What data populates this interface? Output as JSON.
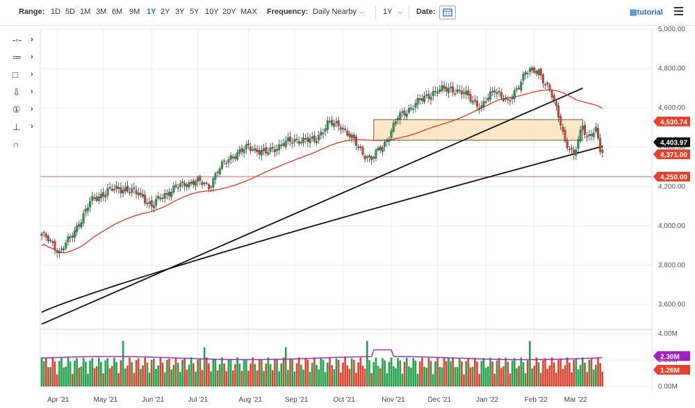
{
  "toolbar": {
    "range_label": "Range:",
    "ranges": [
      "1D",
      "5D",
      "1M",
      "3M",
      "6M",
      "9M",
      "1Y",
      "2Y",
      "3Y",
      "5Y",
      "10Y",
      "20Y",
      "MAX"
    ],
    "active_range": "1Y",
    "frequency_label": "Frequency:",
    "frequency_value": "Daily Nearby",
    "period_value": "1Y",
    "date_label": "Date:",
    "tutorial_label": "tutorial"
  },
  "tools": [
    {
      "icon": "crosshair-icon"
    },
    {
      "icon": "list-icon"
    },
    {
      "icon": "rectangle-icon"
    },
    {
      "icon": "arrow-down-icon"
    },
    {
      "icon": "number-one-icon"
    },
    {
      "icon": "indicator-icon"
    },
    {
      "icon": "magnet-icon"
    }
  ],
  "colors": {
    "up": "#22a04a",
    "down": "#e0402e",
    "ma_red": "#e8412c",
    "ma_black": "#111111",
    "box_fill": "#fbe3c0",
    "box_stroke": "#6b5a3a",
    "hline": "#e06060",
    "vol_ma": "#a020c0",
    "grid": "#ececec"
  },
  "chart_data": {
    "type": "candlestick",
    "price_axis": {
      "ticks": [
        "5,000.00",
        "4,800.00",
        "4,600.00",
        "4,400.00",
        "4,200.00",
        "4,000.00",
        "3,800.00",
        "3,600.00"
      ],
      "ylim": [
        3480,
        5000
      ]
    },
    "volume_axis": {
      "ticks": [
        "4.00M",
        "2.00M",
        "0.00M"
      ],
      "ylim": [
        0,
        4
      ]
    },
    "x_ticks": [
      "Apr '21",
      "May '21",
      "Jun '21",
      "Jul '21",
      "Aug '21",
      "Sep '21",
      "Oct '21",
      "Nov '21",
      "Dec '21",
      "Jan '22",
      "Feb '22",
      "Mar '22"
    ],
    "price_labels": [
      {
        "text": "4,530.74",
        "value": 4530.74,
        "color": "#e8412c"
      },
      {
        "text": "4,403.97",
        "value": 4403.97,
        "color": "#111111"
      },
      {
        "text": "4,371.00",
        "value": 4371.0,
        "color": "#e8412c"
      },
      {
        "text": "4,250.00",
        "value": 4250.0,
        "color": "#e8412c"
      }
    ],
    "volume_labels": [
      {
        "text": "2.30M",
        "value": 2.3,
        "color": "#a020c0"
      },
      {
        "text": "1.26M",
        "value": 1.26,
        "color": "#e8412c"
      }
    ],
    "close_path": [
      [
        0,
        3960
      ],
      [
        8,
        3870
      ],
      [
        14,
        3950
      ],
      [
        22,
        4120
      ],
      [
        30,
        4180
      ],
      [
        38,
        4190
      ],
      [
        46,
        4150
      ],
      [
        50,
        4100
      ],
      [
        56,
        4160
      ],
      [
        62,
        4200
      ],
      [
        70,
        4230
      ],
      [
        76,
        4200
      ],
      [
        80,
        4280
      ],
      [
        86,
        4350
      ],
      [
        94,
        4400
      ],
      [
        102,
        4370
      ],
      [
        110,
        4420
      ],
      [
        118,
        4440
      ],
      [
        124,
        4430
      ],
      [
        130,
        4520
      ],
      [
        136,
        4510
      ],
      [
        140,
        4460
      ],
      [
        146,
        4370
      ],
      [
        150,
        4340
      ],
      [
        156,
        4420
      ],
      [
        162,
        4550
      ],
      [
        170,
        4620
      ],
      [
        178,
        4680
      ],
      [
        186,
        4700
      ],
      [
        194,
        4660
      ],
      [
        200,
        4600
      ],
      [
        206,
        4700
      ],
      [
        212,
        4620
      ],
      [
        220,
        4780
      ],
      [
        226,
        4790
      ],
      [
        232,
        4660
      ],
      [
        236,
        4530
      ],
      [
        238,
        4430
      ],
      [
        242,
        4350
      ],
      [
        246,
        4520
      ],
      [
        248,
        4450
      ],
      [
        252,
        4480
      ],
      [
        254,
        4390
      ],
      [
        256,
        4371
      ]
    ],
    "horizontal_line": 4250,
    "resistance_box": {
      "from_index": 151,
      "to_index": 246,
      "low": 4435,
      "high": 4540
    }
  }
}
